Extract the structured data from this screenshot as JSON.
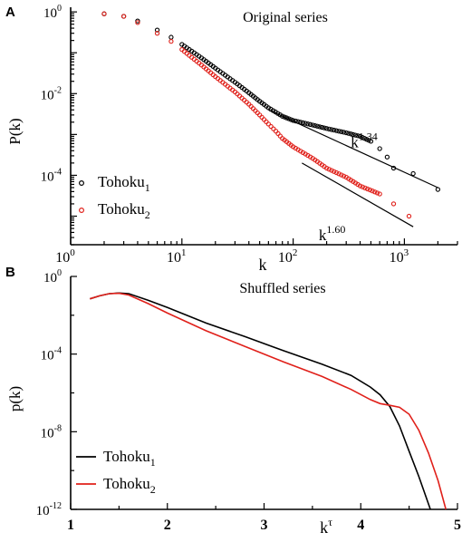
{
  "chart_data": [
    {
      "panel_label": "A",
      "type": "scatter",
      "title": "Original series",
      "xlabel": "k",
      "ylabel": "P(k)",
      "xscale": "log",
      "yscale": "log",
      "xlim": [
        1,
        3000
      ],
      "ylim": [
        2e-06,
        1.3
      ],
      "x_ticks": [
        {
          "base": "10",
          "exp": "0",
          "value": 1
        },
        {
          "base": "10",
          "exp": "1",
          "value": 10
        },
        {
          "base": "10",
          "exp": "2",
          "value": 100
        },
        {
          "base": "10",
          "exp": "3",
          "value": 1000
        }
      ],
      "y_ticks": [
        {
          "base": "10",
          "exp": "0",
          "value": 1
        },
        {
          "base": "10",
          "exp": "-2",
          "value": 0.01
        },
        {
          "base": "10",
          "exp": "-4",
          "value": 0.0001
        }
      ],
      "legend_position": "bottom-left",
      "legend": [
        {
          "base": "Tohoku",
          "sub": "1",
          "color": "#000000"
        },
        {
          "base": "Tohoku",
          "sub": "2",
          "color": "#e0201a"
        }
      ],
      "series": [
        {
          "name": "Tohoku1",
          "color": "#000000",
          "marker": "open-circle",
          "points": [
            [
              2,
              0.9
            ],
            [
              3,
              0.78
            ],
            [
              4,
              0.6
            ],
            [
              6,
              0.36
            ],
            [
              8,
              0.24
            ],
            [
              10,
              0.16
            ],
            [
              15,
              0.075
            ],
            [
              20,
              0.042
            ],
            [
              30,
              0.019
            ],
            [
              40,
              0.0105
            ],
            [
              50,
              0.0065
            ],
            [
              60,
              0.0045
            ],
            [
              80,
              0.0028
            ],
            [
              100,
              0.0022
            ],
            [
              150,
              0.0017
            ],
            [
              200,
              0.0014
            ],
            [
              300,
              0.0011
            ],
            [
              400,
              0.0009
            ],
            [
              500,
              0.00068
            ],
            [
              600,
              0.00045
            ],
            [
              700,
              0.00028
            ],
            [
              800,
              0.00015
            ],
            [
              1200,
              0.00011
            ],
            [
              2000,
              4.5e-05
            ]
          ]
        },
        {
          "name": "Tohoku2",
          "color": "#e0201a",
          "marker": "open-circle",
          "points": [
            [
              2,
              0.9
            ],
            [
              3,
              0.78
            ],
            [
              4,
              0.55
            ],
            [
              6,
              0.3
            ],
            [
              8,
              0.19
            ],
            [
              10,
              0.12
            ],
            [
              15,
              0.05
            ],
            [
              20,
              0.026
            ],
            [
              30,
              0.011
            ],
            [
              40,
              0.0055
            ],
            [
              50,
              0.003
            ],
            [
              60,
              0.0018
            ],
            [
              70,
              0.0012
            ],
            [
              80,
              0.0008
            ],
            [
              100,
              0.0005
            ],
            [
              150,
              0.00026
            ],
            [
              200,
              0.00015
            ],
            [
              300,
              9e-05
            ],
            [
              400,
              5.5e-05
            ],
            [
              600,
              3.5e-05
            ],
            [
              800,
              2e-05
            ],
            [
              1100,
              1e-05
            ]
          ]
        }
      ],
      "fit_lines": [
        {
          "label_base": "k",
          "label_exp": "1.34",
          "x": [
            60,
            2000
          ],
          "y": [
            0.004,
            5e-05
          ]
        },
        {
          "label_base": "k",
          "label_exp": "1.60",
          "x": [
            120,
            1200
          ],
          "y": [
            0.0002,
            5.5e-06
          ]
        }
      ]
    },
    {
      "panel_label": "B",
      "type": "line",
      "title": "Shuffled series",
      "xlabel_base": "k",
      "xlabel_exp": "τ",
      "ylabel": "p(k)",
      "yscale": "log",
      "xlim": [
        1,
        5
      ],
      "ylim": [
        1e-12,
        1
      ],
      "x_ticks": [
        "1",
        "2",
        "3",
        "4",
        "5"
      ],
      "y_ticks": [
        {
          "base": "10",
          "exp": "0",
          "value": 1
        },
        {
          "base": "10",
          "exp": "-4",
          "value": 0.0001
        },
        {
          "base": "10",
          "exp": "-8",
          "value": 1e-08
        },
        {
          "base": "10",
          "exp": "-12",
          "value": 1e-12
        }
      ],
      "legend_position": "bottom-left",
      "legend": [
        {
          "base": "Tohoku",
          "sub": "1",
          "color": "#000000"
        },
        {
          "base": "Tohoku",
          "sub": "2",
          "color": "#e0201a"
        }
      ],
      "series": [
        {
          "name": "Tohoku1",
          "color": "#000000",
          "points": [
            [
              1.2,
              0.07
            ],
            [
              1.3,
              0.1
            ],
            [
              1.4,
              0.13
            ],
            [
              1.5,
              0.14
            ],
            [
              1.6,
              0.13
            ],
            [
              1.8,
              0.06
            ],
            [
              2.0,
              0.025
            ],
            [
              2.4,
              0.004
            ],
            [
              2.8,
              0.0008
            ],
            [
              3.2,
              0.00015
            ],
            [
              3.6,
              3e-05
            ],
            [
              3.9,
              8e-06
            ],
            [
              4.1,
              2e-06
            ],
            [
              4.2,
              8e-07
            ],
            [
              4.3,
              2e-07
            ],
            [
              4.4,
              2e-08
            ],
            [
              4.5,
              1e-09
            ],
            [
              4.6,
              5e-11
            ],
            [
              4.65,
              1e-11
            ],
            [
              4.72,
              1e-12
            ]
          ]
        },
        {
          "name": "Tohoku2",
          "color": "#e0201a",
          "points": [
            [
              1.2,
              0.07
            ],
            [
              1.3,
              0.1
            ],
            [
              1.4,
              0.13
            ],
            [
              1.5,
              0.135
            ],
            [
              1.6,
              0.11
            ],
            [
              1.8,
              0.04
            ],
            [
              2.0,
              0.013
            ],
            [
              2.4,
              0.0016
            ],
            [
              2.8,
              0.00025
            ],
            [
              3.2,
              4e-05
            ],
            [
              3.6,
              7e-06
            ],
            [
              3.9,
              1.5e-06
            ],
            [
              4.1,
              4.5e-07
            ],
            [
              4.2,
              2.8e-07
            ],
            [
              4.3,
              2.3e-07
            ],
            [
              4.4,
              1.8e-07
            ],
            [
              4.5,
              8e-08
            ],
            [
              4.6,
              1.2e-08
            ],
            [
              4.7,
              8e-10
            ],
            [
              4.8,
              3e-11
            ],
            [
              4.88,
              1e-12
            ]
          ]
        }
      ]
    }
  ]
}
